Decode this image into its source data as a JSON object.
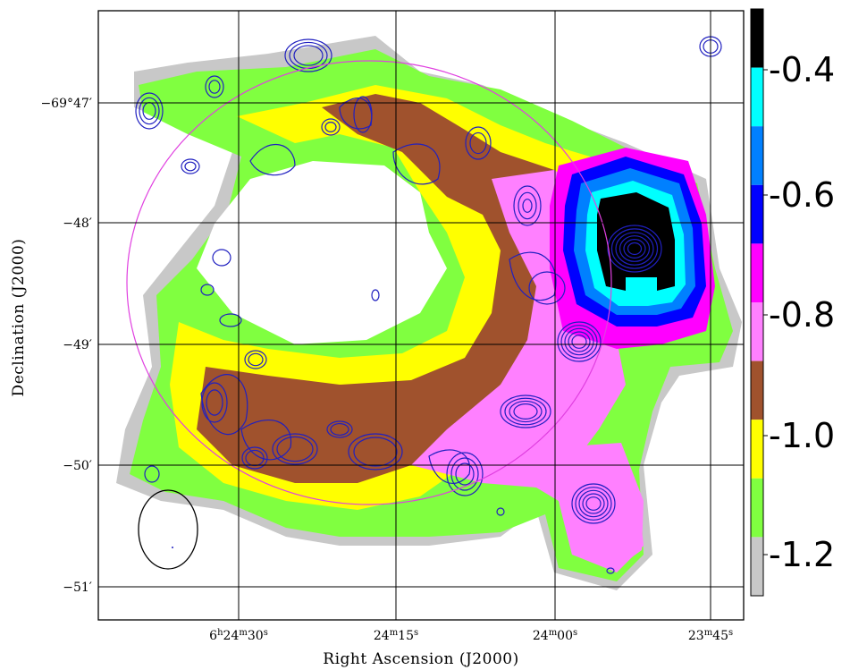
{
  "figure": {
    "xlabel": "Right Ascension (J2000)",
    "ylabel": "Declination (J2000)",
    "xticks": [
      {
        "h": "6",
        "m": "24",
        "s": "30",
        "showHour": true
      },
      {
        "h": "",
        "m": "24",
        "s": "15",
        "showHour": false
      },
      {
        "h": "",
        "m": "24",
        "s": "00",
        "showHour": false
      },
      {
        "h": "",
        "m": "23",
        "s": "45",
        "showHour": false
      }
    ],
    "yticks": [
      {
        "deg": "−69°",
        "min": "47′",
        "showDeg": true
      },
      {
        "deg": "",
        "min": "−48′",
        "showDeg": false
      },
      {
        "deg": "",
        "min": "−49′",
        "showDeg": false
      },
      {
        "deg": "",
        "min": "−50′",
        "showDeg": false
      },
      {
        "deg": "",
        "min": "−51′",
        "showDeg": false
      }
    ]
  },
  "colorbar": {
    "labels": [
      "-0.4",
      "-0.6",
      "-0.8",
      "-1.0",
      "-1.2"
    ],
    "colors": [
      "#000000",
      "#00ffff",
      "#0080ff",
      "#0000ff",
      "#ff00ff",
      "#ff80ff",
      "#a0522d",
      "#ffff00",
      "#80ff40",
      "#c8c8c8"
    ]
  },
  "overlay": {
    "ring_color": "#e040e0",
    "contour_color": "#2020c0",
    "beam_color": "#000000"
  }
}
